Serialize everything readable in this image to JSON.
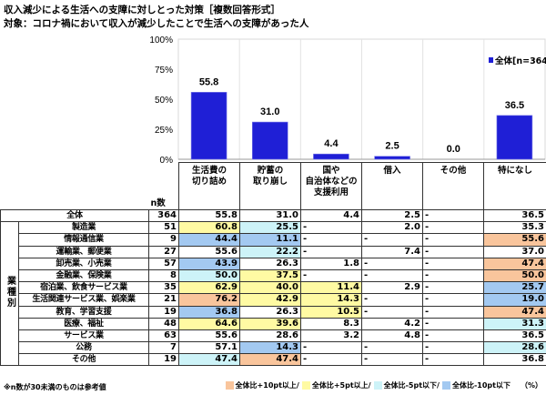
{
  "title": "収入減少による生活への支障に対しとった対策［複数回答形式］",
  "subtitle": "対象：コロナ禍において収入が減少したことで生活への支障があった人",
  "chart_data": {
    "type": "bar",
    "categories": [
      "生活費の切り詰め",
      "貯蓄の取り崩し",
      "国や自治体などの支援利用",
      "借入",
      "その他",
      "特になし"
    ],
    "series": [
      {
        "name": "全体[n=364]",
        "values": [
          55.8,
          31.0,
          4.4,
          2.5,
          0.0,
          36.5
        ],
        "color": "#1f1fd6"
      }
    ],
    "value_labels": [
      "55.8",
      "31.0",
      "4.4",
      "2.5",
      "0.0",
      "36.5"
    ],
    "yticks": [
      "0%",
      "25%",
      "50%",
      "75%",
      "100%"
    ],
    "ylim": [
      0,
      100
    ],
    "grid": "vertical",
    "legend": "top-right"
  },
  "table": {
    "n_header": "n数",
    "headers": [
      [
        "生活費の",
        "切り詰め"
      ],
      [
        "貯蓄の",
        "取り崩し"
      ],
      [
        "国や",
        "自治体などの",
        "支援利用"
      ],
      [
        "借入"
      ],
      [
        "その他"
      ],
      [
        "特になし"
      ]
    ],
    "group_label": "業種別",
    "total": {
      "label": "全体",
      "n": "364",
      "values": [
        "55.8",
        "31.0",
        "4.4",
        "2.5",
        "-",
        "36.5"
      ],
      "hl": [
        "",
        "",
        "",
        "",
        "",
        ""
      ]
    },
    "rows": [
      {
        "label": "製造業",
        "n": "51",
        "values": [
          "60.8",
          "25.5",
          "-",
          "2.0",
          "-",
          "35.3"
        ],
        "hl": [
          "y",
          "c",
          "",
          "",
          "",
          ""
        ]
      },
      {
        "label": "情報通信業",
        "n": "9",
        "values": [
          "44.4",
          "11.1",
          "-",
          "-",
          "-",
          "55.6"
        ],
        "hl": [
          "b",
          "b",
          "",
          "",
          "",
          "o"
        ]
      },
      {
        "label": "運輸業、郵便業",
        "n": "27",
        "values": [
          "55.6",
          "22.2",
          "-",
          "7.4",
          "-",
          "37.0"
        ],
        "hl": [
          "",
          "c",
          "",
          "",
          "",
          ""
        ]
      },
      {
        "label": "卸売業、小売業",
        "n": "57",
        "values": [
          "43.9",
          "26.3",
          "1.8",
          "-",
          "-",
          "47.4"
        ],
        "hl": [
          "b",
          "",
          "",
          "",
          "",
          "o"
        ]
      },
      {
        "label": "金融業、保険業",
        "n": "8",
        "values": [
          "50.0",
          "37.5",
          "-",
          "-",
          "-",
          "50.0"
        ],
        "hl": [
          "c",
          "y",
          "",
          "",
          "",
          "o"
        ]
      },
      {
        "label": "宿泊業、飲食サービス業",
        "n": "35",
        "values": [
          "62.9",
          "40.0",
          "11.4",
          "2.9",
          "-",
          "25.7"
        ],
        "hl": [
          "y",
          "y",
          "y",
          "",
          "",
          "b"
        ]
      },
      {
        "label": "生活関連サービス業、娯楽業",
        "n": "21",
        "values": [
          "76.2",
          "42.9",
          "14.3",
          "-",
          "-",
          "19.0"
        ],
        "hl": [
          "o",
          "y",
          "y",
          "",
          "",
          "b"
        ]
      },
      {
        "label": "教育、学習支援",
        "n": "19",
        "values": [
          "36.8",
          "26.3",
          "10.5",
          "-",
          "-",
          "47.4"
        ],
        "hl": [
          "b",
          "",
          "y",
          "",
          "",
          "o"
        ]
      },
      {
        "label": "医療、福祉",
        "n": "48",
        "values": [
          "64.6",
          "39.6",
          "8.3",
          "4.2",
          "-",
          "31.3"
        ],
        "hl": [
          "y",
          "y",
          "",
          "",
          "",
          "c"
        ]
      },
      {
        "label": "サービス業",
        "n": "63",
        "values": [
          "55.6",
          "28.6",
          "3.2",
          "4.8",
          "-",
          "36.5"
        ],
        "hl": [
          "",
          "",
          "",
          "",
          "",
          ""
        ]
      },
      {
        "label": "公務",
        "n": "7",
        "values": [
          "57.1",
          "14.3",
          "-",
          "-",
          "-",
          "28.6"
        ],
        "hl": [
          "",
          "b",
          "",
          "",
          "",
          "c"
        ]
      },
      {
        "label": "その他",
        "n": "19",
        "values": [
          "47.4",
          "47.4",
          "-",
          "-",
          "-",
          "36.8"
        ],
        "hl": [
          "c",
          "o",
          "",
          "",
          "",
          ""
        ]
      }
    ]
  },
  "note": "※n数が30未満のものは参考値",
  "legend": {
    "items": [
      {
        "label": "全体比+10pt以上/",
        "color": "#f9c59c"
      },
      {
        "label": "全体比+5pt以上/",
        "color": "#fffaa3"
      },
      {
        "label": "全体比-5pt以下/",
        "color": "#cdf3f8"
      },
      {
        "label": "全体比-10pt以下",
        "color": "#a3c9f1"
      }
    ],
    "unit": "（%）"
  }
}
